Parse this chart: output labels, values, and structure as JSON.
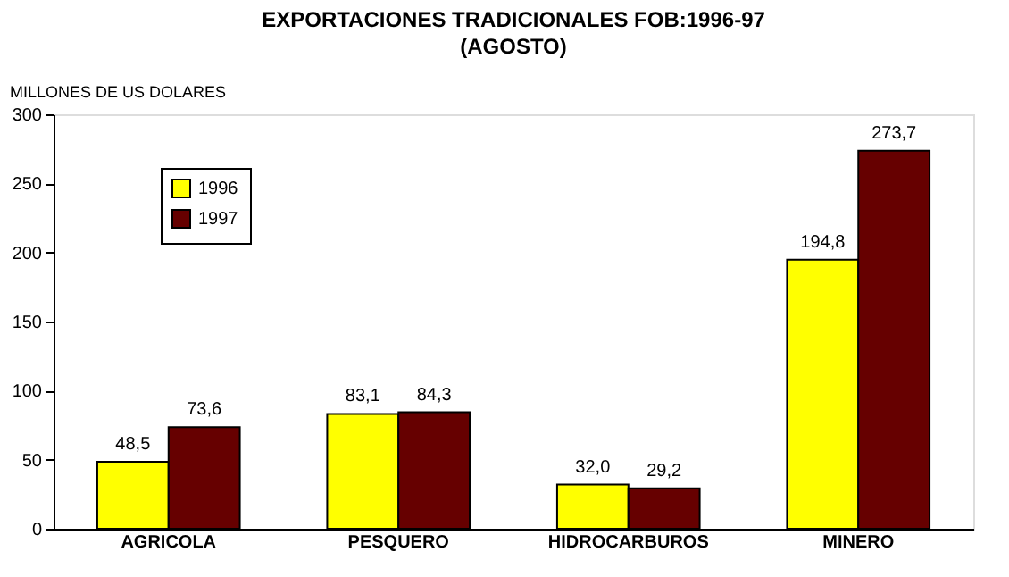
{
  "chart_data": {
    "type": "bar",
    "title": "EXPORTACIONES TRADICIONALES FOB:1996-97",
    "subtitle": "(AGOSTO)",
    "ylabel": "MILLONES DE US DOLARES",
    "categories": [
      "AGRICOLA",
      "PESQUERO",
      "HIDROCARBUROS",
      "MINERO"
    ],
    "series": [
      {
        "name": "1996",
        "color": "#ffff00",
        "values": [
          48.5,
          83.1,
          32.0,
          194.8
        ],
        "value_labels": [
          "48,5",
          "83,1",
          "32,0",
          "194,8"
        ]
      },
      {
        "name": "1997",
        "color": "#660000",
        "values": [
          73.6,
          84.3,
          29.2,
          273.7
        ],
        "value_labels": [
          "73,6",
          "84,3",
          "29,2",
          "273,7"
        ]
      }
    ],
    "ylim": [
      0,
      300
    ],
    "yticks": [
      0,
      50,
      100,
      150,
      200,
      250,
      300
    ],
    "grid": false,
    "legend": "top left"
  }
}
